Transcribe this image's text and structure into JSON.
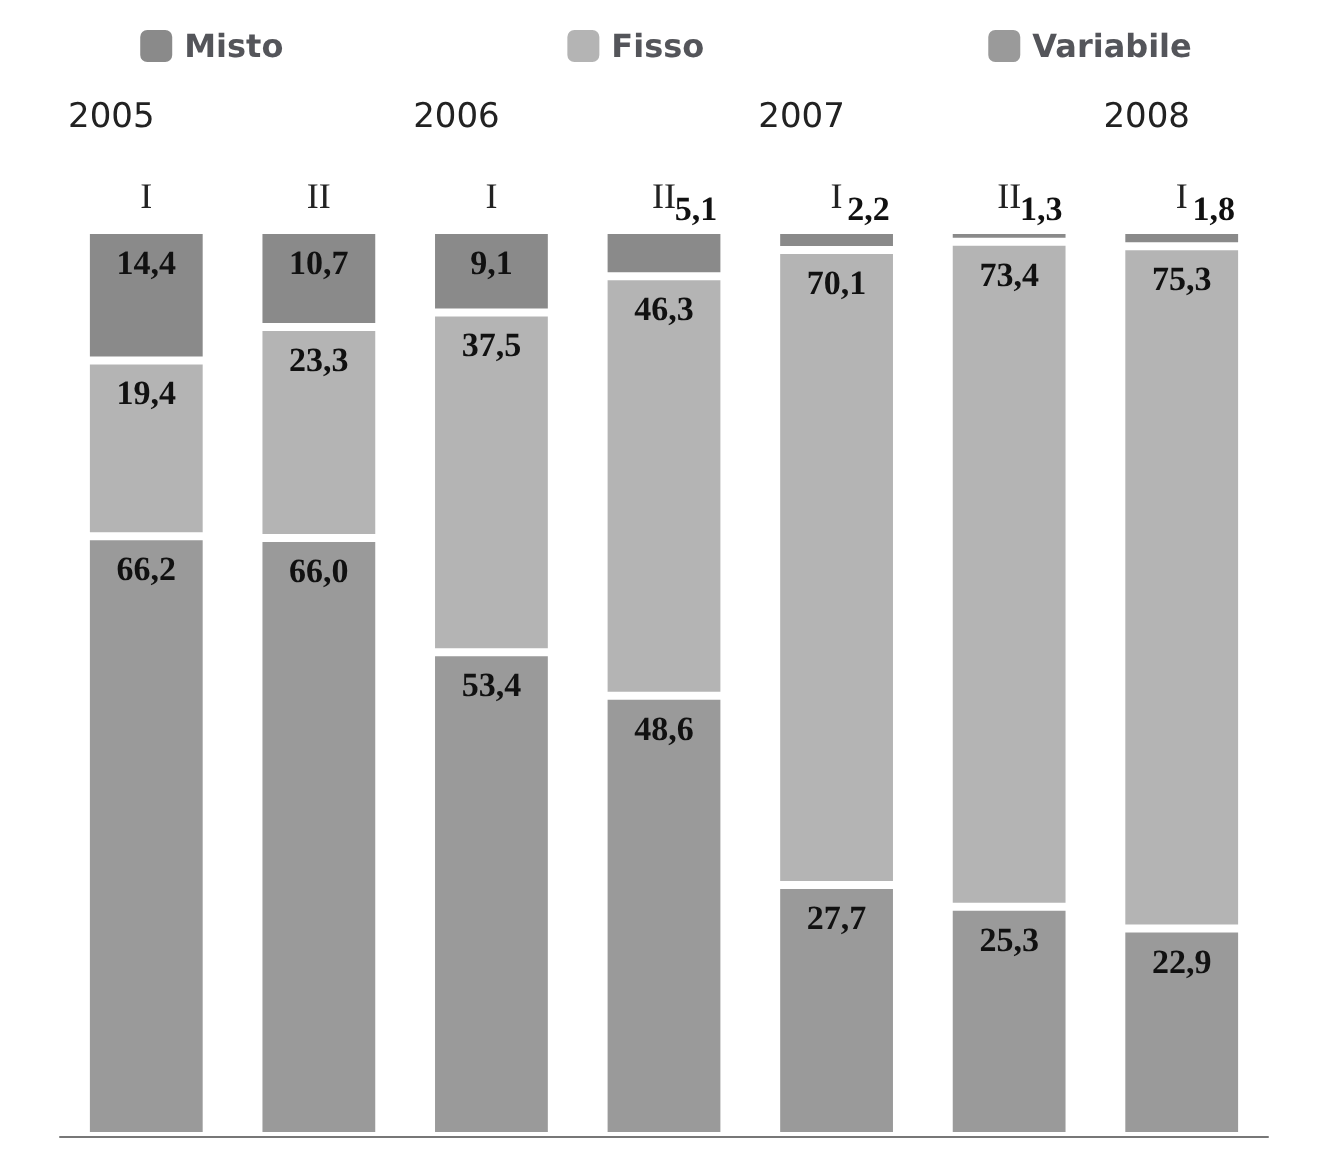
{
  "chart_data": {
    "type": "bar",
    "stacked": true,
    "legend": "top",
    "annotations": [
      "2005",
      "2006",
      "2007",
      "2008"
    ],
    "categories": [
      "I",
      "II",
      "I",
      "II",
      "I",
      "II",
      "I"
    ],
    "series": [
      {
        "name": "Variabile",
        "color": "#9a9a9a",
        "values": [
          66.2,
          66.0,
          53.4,
          48.6,
          27.7,
          25.3,
          22.9
        ],
        "value_labels": [
          "66,2",
          "66,0",
          "53,4",
          "48,6",
          "27,7",
          "25,3",
          "22,9"
        ]
      },
      {
        "name": "Fisso",
        "color": "#b4b4b4",
        "values": [
          19.4,
          23.3,
          37.5,
          46.3,
          70.1,
          73.4,
          75.3
        ],
        "value_labels": [
          "19,4",
          "23,3",
          "37,5",
          "46,3",
          "70,1",
          "73,4",
          "75,3"
        ]
      },
      {
        "name": "Misto",
        "color": "#8a8a8a",
        "values": [
          14.4,
          10.7,
          9.1,
          5.1,
          2.2,
          1.3,
          1.8
        ],
        "value_labels": [
          "14,4",
          "10,7",
          "9,1",
          "5,1",
          "2,2",
          "1,3",
          "1,8"
        ]
      }
    ]
  }
}
